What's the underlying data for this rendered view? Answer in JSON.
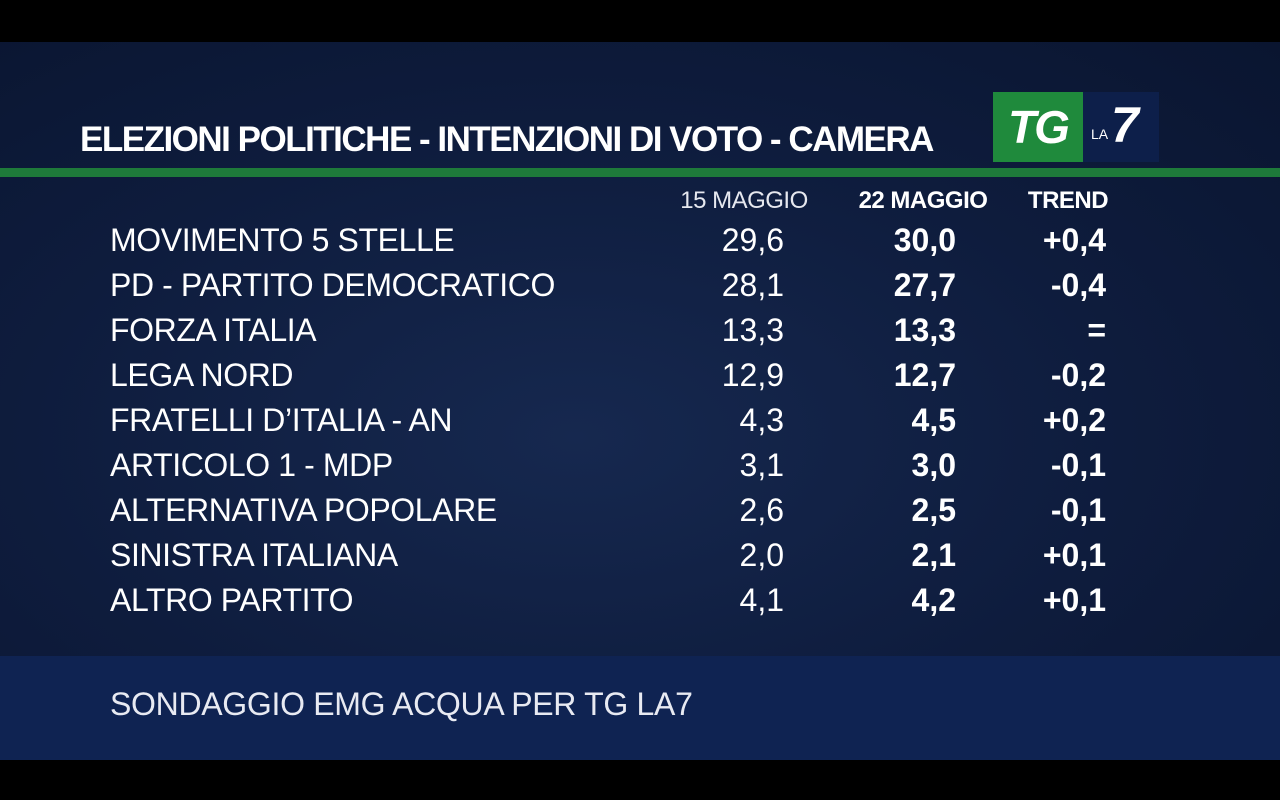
{
  "title": "ELEZIONI POLITICHE - INTENZIONI DI VOTO - CAMERA",
  "logo": {
    "tg": "TG",
    "la": "LA",
    "seven": "7",
    "tg_color": "#1f8a3c",
    "la7_color": "#0d1f4a"
  },
  "colors": {
    "background": "#0e1c3d",
    "rule": "#1e7a3a",
    "footer": "#0f2352",
    "text": "#ffffff"
  },
  "footer": "SONDAGGIO EMG ACQUA PER TG LA7",
  "chart_data": {
    "type": "table",
    "title": "ELEZIONI POLITICHE - INTENZIONI DI VOTO - CAMERA",
    "columns": [
      "15 MAGGIO",
      "22 MAGGIO",
      "TREND"
    ],
    "rows": [
      {
        "party": "MOVIMENTO 5 STELLE",
        "may15": "29,6",
        "may22": "30,0",
        "trend": "+0,4"
      },
      {
        "party": "PD - PARTITO DEMOCRATICO",
        "may15": "28,1",
        "may22": "27,7",
        "trend": "-0,4"
      },
      {
        "party": "FORZA ITALIA",
        "may15": "13,3",
        "may22": "13,3",
        "trend": "="
      },
      {
        "party": "LEGA NORD",
        "may15": "12,9",
        "may22": "12,7",
        "trend": "-0,2"
      },
      {
        "party": "FRATELLI D’ITALIA - AN",
        "may15": "4,3",
        "may22": "4,5",
        "trend": "+0,2"
      },
      {
        "party": "ARTICOLO 1 - MDP",
        "may15": "3,1",
        "may22": "3,0",
        "trend": "-0,1"
      },
      {
        "party": "ALTERNATIVA POPOLARE",
        "may15": "2,6",
        "may22": "2,5",
        "trend": "-0,1"
      },
      {
        "party": "SINISTRA ITALIANA",
        "may15": "2,0",
        "may22": "2,1",
        "trend": "+0,1"
      },
      {
        "party": "ALTRO PARTITO",
        "may15": "4,1",
        "may22": "4,2",
        "trend": "+0,1"
      }
    ]
  }
}
